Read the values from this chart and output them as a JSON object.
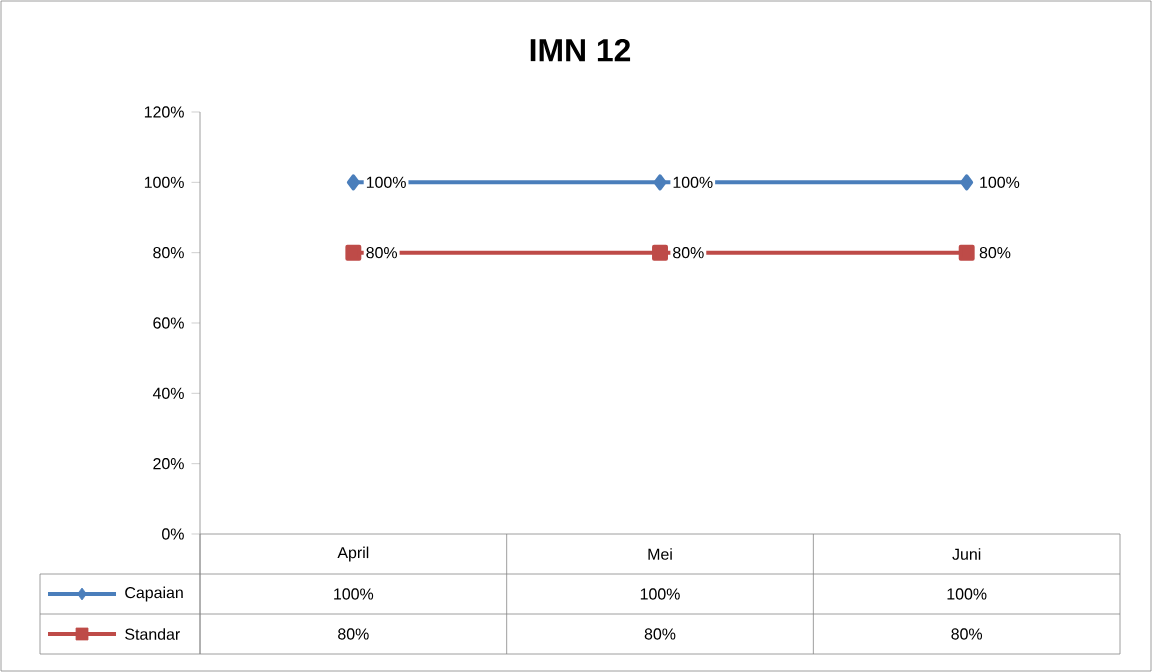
{
  "chart_data": {
    "type": "line",
    "title": "IMN 12",
    "categories": [
      "April",
      "Mei",
      "Juni"
    ],
    "series": [
      {
        "name": "Capaian",
        "color": "#4a7ebb",
        "marker": "diamond",
        "line_style": "solid",
        "values": [
          100,
          100,
          100
        ],
        "value_labels": [
          "100%",
          "100%",
          "100%"
        ]
      },
      {
        "name": "Standar",
        "color": "#be4b48",
        "marker": "square",
        "line_style": "solid",
        "values": [
          80,
          80,
          80
        ],
        "value_labels": [
          "80%",
          "80%",
          "80%"
        ]
      }
    ],
    "ylim": [
      0,
      120
    ],
    "yticks": [
      {
        "value": 0,
        "label": "0%"
      },
      {
        "value": 20,
        "label": "20%"
      },
      {
        "value": 40,
        "label": "40%"
      },
      {
        "value": 60,
        "label": "60%"
      },
      {
        "value": 80,
        "label": "80%"
      },
      {
        "value": 100,
        "label": "100%"
      },
      {
        "value": 120,
        "label": "120%"
      }
    ],
    "legend": "bottom"
  }
}
